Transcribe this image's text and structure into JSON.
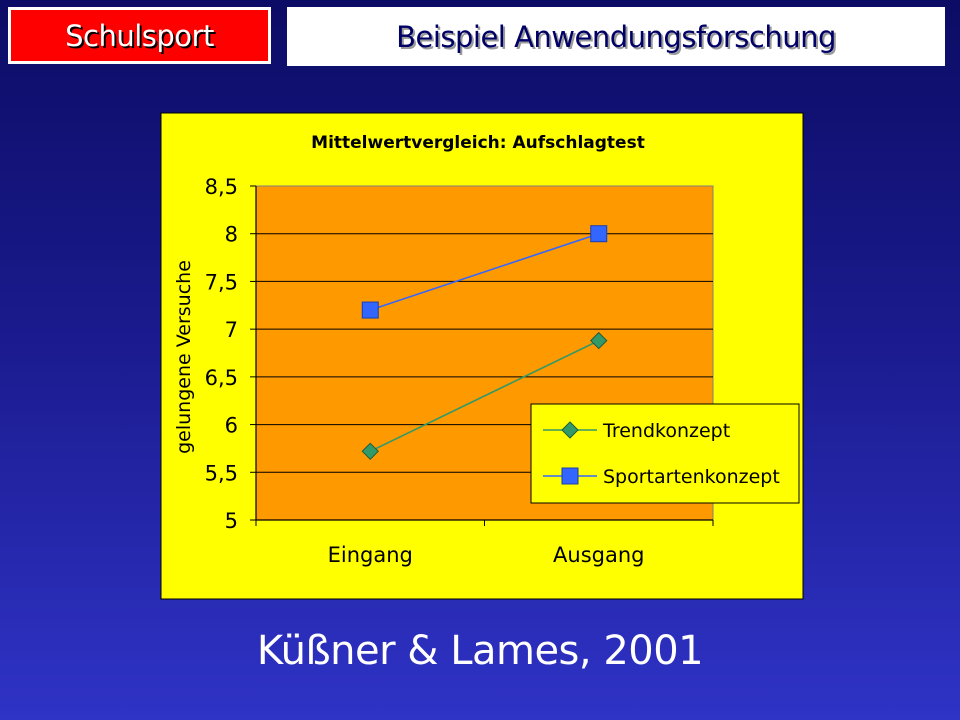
{
  "header": {
    "tag": "Schulsport",
    "title": "Beispiel Anwendungsforschung"
  },
  "citation": "Küßner & Lames, 2001",
  "colors": {
    "tag_bg": "#ff0000",
    "chart_bg": "#ffff00",
    "plot_bg": "#ff9900",
    "series1": "#339966",
    "series2": "#3366ff"
  },
  "chart_data": {
    "type": "line",
    "title": "Mittelwertvergleich: Aufschlagtest",
    "xlabel": "",
    "ylabel": "gelungene Versuche",
    "categories": [
      "Eingang",
      "Ausgang"
    ],
    "ylim": [
      5,
      8.5
    ],
    "yticks": [
      "5",
      "5,5",
      "6",
      "6,5",
      "7",
      "7,5",
      "8",
      "8,5"
    ],
    "grid": true,
    "legend_position": "bottom-right",
    "series": [
      {
        "name": "Trendkonzept",
        "values": [
          5.72,
          6.88
        ],
        "marker": "diamond",
        "color": "#339966"
      },
      {
        "name": "Sportartenkonzept",
        "values": [
          7.2,
          8.0
        ],
        "marker": "square",
        "color": "#3366ff"
      }
    ]
  }
}
